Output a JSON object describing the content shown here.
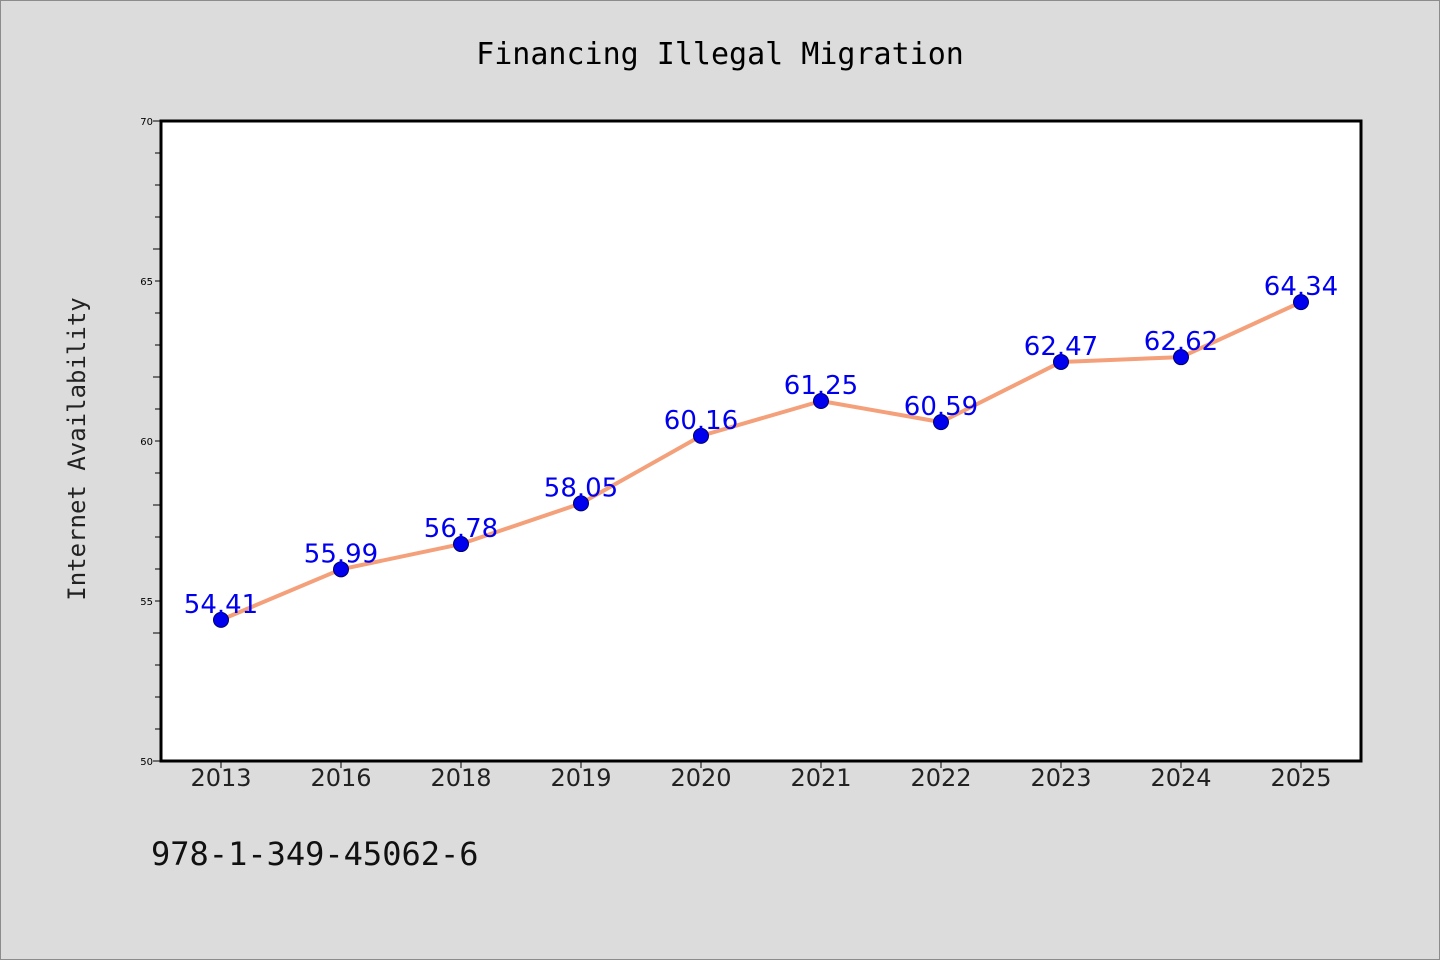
{
  "chart_data": {
    "type": "line",
    "title": "Financing Illegal Migration",
    "xlabel": "",
    "ylabel": "Internet Availability",
    "categories": [
      "2013",
      "2016",
      "2018",
      "2019",
      "2020",
      "2021",
      "2022",
      "2023",
      "2024",
      "2025"
    ],
    "series": [
      {
        "values": [
          54.41,
          55.99,
          56.78,
          58.05,
          60.16,
          61.25,
          60.59,
          62.47,
          62.62,
          64.34
        ],
        "labels": [
          "54.41",
          "55.99",
          "56.78",
          "58.05",
          "60.16",
          "61.25",
          "60.59",
          "62.47",
          "62.62",
          "64.34"
        ],
        "line_color": "#f4a07a",
        "marker_color": "#0000ee"
      }
    ],
    "ylim": [
      50,
      70
    ],
    "yticks": [
      "50",
      "55",
      "60",
      "65",
      "70"
    ],
    "grid": false,
    "legend": "none"
  },
  "footer": {
    "isbn": "978-1-349-45062-6"
  },
  "colors": {
    "background": "#dcdcdc",
    "plot_background": "#ffffff",
    "line": "#f4a07a",
    "marker": "#0000ee",
    "data_label": "#0000ee"
  }
}
